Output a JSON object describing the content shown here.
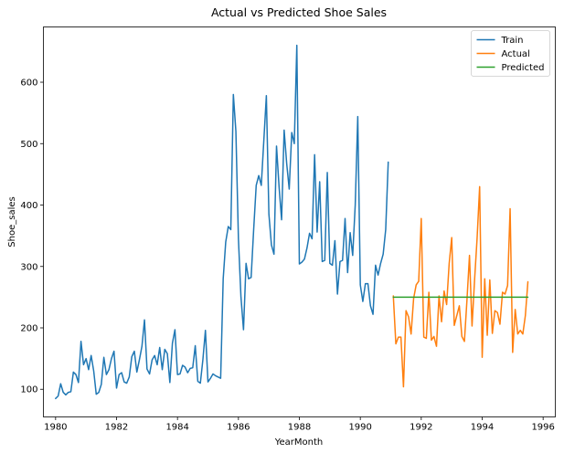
{
  "chart_data": {
    "type": "line",
    "title": "Actual vs Predicted Shoe Sales",
    "xlabel": "YearMonth",
    "ylabel": "Shoe_sales",
    "xlim": [
      1979.6,
      1996.4
    ],
    "ylim": [
      55,
      690
    ],
    "x_ticks": [
      1980,
      1982,
      1984,
      1986,
      1988,
      1990,
      1992,
      1994,
      1996
    ],
    "y_ticks": [
      100,
      200,
      300,
      400,
      500,
      600
    ],
    "legend_position": "top-right",
    "grid": false,
    "series": [
      {
        "name": "Train",
        "color": "#1f77b4",
        "start_year": 1980,
        "step": 0.0833333,
        "values": [
          85,
          89,
          109,
          95,
          91,
          95,
          96,
          128,
          124,
          111,
          178,
          140,
          150,
          132,
          155,
          130,
          92,
          95,
          108,
          152,
          124,
          132,
          150,
          162,
          102,
          124,
          127,
          112,
          110,
          120,
          153,
          162,
          128,
          148,
          170,
          213,
          133,
          125,
          148,
          155,
          140,
          168,
          132,
          165,
          158,
          111,
          175,
          197,
          124,
          125,
          139,
          136,
          127,
          134,
          135,
          171,
          113,
          110,
          148,
          196,
          112,
          118,
          125,
          122,
          120,
          118,
          280,
          340,
          365,
          360,
          580,
          520,
          345,
          250,
          197,
          305,
          280,
          282,
          360,
          432,
          448,
          432,
          505,
          578,
          385,
          335,
          320,
          496,
          430,
          376,
          522,
          468,
          426,
          518,
          500,
          660,
          304,
          307,
          312,
          330,
          354,
          345,
          482,
          356,
          438,
          308,
          310,
          453,
          305,
          302,
          342,
          255,
          308,
          310,
          378,
          290,
          355,
          318,
          400,
          544,
          270,
          243,
          272,
          272,
          236,
          222,
          302,
          286,
          305,
          320,
          360,
          470
        ]
      },
      {
        "name": "Actual",
        "color": "#ff7f0e",
        "start_year": 1991.0833,
        "step": 0.0833333,
        "values": [
          252,
          174,
          185,
          185,
          104,
          228,
          218,
          190,
          248,
          270,
          276,
          378,
          185,
          183,
          258,
          180,
          186,
          170,
          252,
          210,
          260,
          238,
          305,
          347,
          204,
          220,
          236,
          186,
          178,
          245,
          318,
          203,
          278,
          346,
          430,
          152,
          280,
          188,
          278,
          191,
          228,
          225,
          206,
          258,
          255,
          269,
          394,
          160,
          230,
          190,
          196,
          190,
          220,
          275
        ]
      },
      {
        "name": "Predicted",
        "color": "#2ca02c",
        "start_year": 1991.0833,
        "step": 0.0833333,
        "values": [
          250,
          250,
          250,
          250,
          250,
          250,
          250,
          250,
          250,
          250,
          250,
          250,
          250,
          250,
          250,
          250,
          250,
          250,
          250,
          250,
          250,
          250,
          250,
          250,
          250,
          250,
          250,
          250,
          250,
          250,
          250,
          250,
          250,
          250,
          250,
          250,
          250,
          250,
          250,
          250,
          250,
          250,
          250,
          250,
          250,
          250,
          250,
          250,
          250,
          250,
          250,
          250,
          250,
          250
        ]
      }
    ]
  }
}
